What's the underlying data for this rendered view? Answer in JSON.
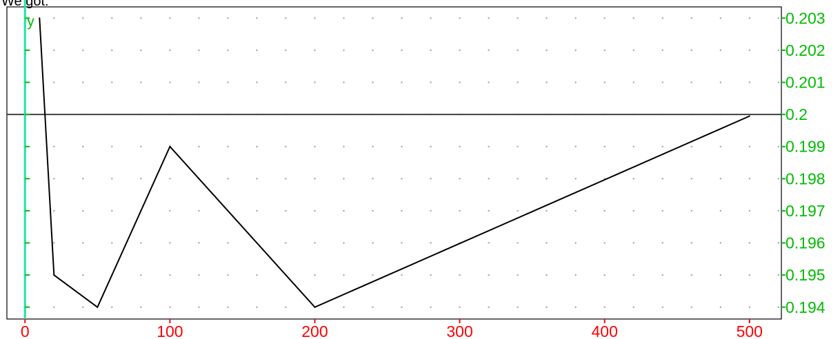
{
  "caption": "We got:",
  "chart_data": {
    "type": "line",
    "title": "",
    "xlabel": "",
    "ylabel": "y",
    "x": [
      10,
      20,
      50,
      100,
      200,
      500
    ],
    "series": [
      {
        "values": [
          0.203,
          0.195,
          0.194,
          0.199,
          0.194,
          0.19995
        ]
      }
    ],
    "xlim": [
      -12.5,
      522
    ],
    "ylim": [
      0.19363,
      0.20335
    ],
    "x_ticks": [
      0,
      100,
      200,
      300,
      400,
      500
    ],
    "x_tick_labels": [
      "0",
      "100",
      "200",
      "300",
      "400",
      "500"
    ],
    "y_ticks": [
      0.194,
      0.195,
      0.196,
      0.197,
      0.198,
      0.199,
      0.2,
      0.201,
      0.202,
      0.203
    ],
    "y_tick_labels": [
      "0.194",
      "0.195",
      "0.196",
      "0.197",
      "0.198",
      "0.199",
      "0.2",
      "0.201",
      "0.202",
      "0.203"
    ],
    "reference_line_y": 0.2,
    "grid": "dotted",
    "grid_x_step": 20,
    "colors": {
      "series": "#000000",
      "x_ticks": "#ff0000",
      "y_ticks": "#00bb00",
      "y_axis": "#22e3a8",
      "reference_line": "#404040",
      "grid": "#9a9a9a",
      "frame": "#000000"
    }
  }
}
